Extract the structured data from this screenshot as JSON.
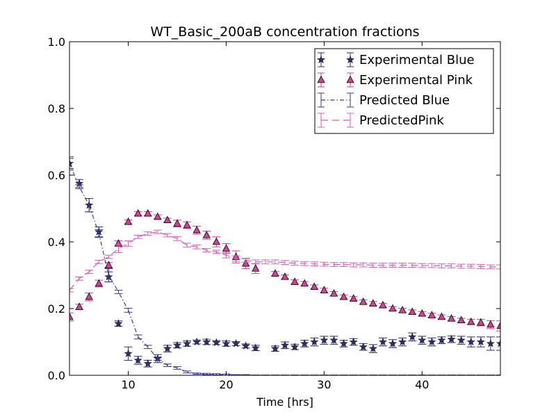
{
  "chart_data": {
    "type": "scatter",
    "title": "WT_Basic_200aB concentration fractions",
    "xlabel": "Time [hrs]",
    "ylabel": "",
    "xlim": [
      4,
      48
    ],
    "ylim": [
      0,
      1.0
    ],
    "xticks": [
      10,
      20,
      30,
      40
    ],
    "xtick_labels": [
      "10",
      "20",
      "30",
      "40"
    ],
    "yticks": [
      0,
      0.2,
      0.4,
      0.6,
      0.8,
      1.0
    ],
    "ytick_labels": [
      "0.0",
      "0.2",
      "0.4",
      "0.6",
      "0.8",
      "1.0"
    ],
    "grid": false,
    "legend_position": "top-right",
    "series": [
      {
        "name": "Experimental Blue",
        "style": "star-markers-with-errorbars",
        "color": "#2b2a6b",
        "x": [
          4,
          5,
          6,
          7,
          8,
          9,
          10,
          11,
          12,
          13,
          14,
          15,
          16,
          17,
          18,
          19,
          20,
          21,
          22,
          23,
          25,
          26,
          27,
          28,
          29,
          30,
          31,
          32,
          33,
          34,
          35,
          36,
          37,
          38,
          39,
          40,
          41,
          42,
          43,
          44,
          45,
          46,
          47,
          48
        ],
        "y": [
          0.635,
          0.575,
          0.51,
          0.43,
          0.295,
          0.155,
          0.065,
          0.045,
          0.035,
          0.05,
          0.08,
          0.09,
          0.095,
          0.1,
          0.1,
          0.098,
          0.095,
          0.095,
          0.088,
          0.082,
          0.08,
          0.09,
          0.085,
          0.095,
          0.1,
          0.105,
          0.105,
          0.095,
          0.1,
          0.085,
          0.08,
          0.1,
          0.095,
          0.1,
          0.115,
          0.105,
          0.1,
          0.105,
          0.108,
          0.105,
          0.1,
          0.1,
          0.095,
          0.095
        ],
        "err": [
          0.015,
          0.012,
          0.02,
          0.015,
          0.015,
          0.008,
          0.02,
          0.012,
          0.01,
          0.012,
          0.01,
          0.008,
          0.008,
          0.006,
          0.008,
          0.006,
          0.008,
          0.006,
          0.006,
          0.008,
          0.008,
          0.01,
          0.008,
          0.01,
          0.012,
          0.012,
          0.012,
          0.01,
          0.01,
          0.01,
          0.012,
          0.012,
          0.012,
          0.012,
          0.012,
          0.012,
          0.012,
          0.01,
          0.01,
          0.012,
          0.015,
          0.015,
          0.02,
          0.02
        ]
      },
      {
        "name": "Experimental Pink",
        "style": "triangle-markers-with-errorbars",
        "color": "#d63f94",
        "x": [
          4,
          5,
          6,
          7,
          8,
          9,
          10,
          11,
          12,
          13,
          14,
          15,
          16,
          17,
          18,
          19,
          20,
          21,
          22,
          23,
          25,
          26,
          27,
          28,
          29,
          30,
          31,
          32,
          33,
          34,
          35,
          36,
          37,
          38,
          39,
          40,
          41,
          42,
          43,
          44,
          45,
          46,
          47,
          48
        ],
        "y": [
          0.175,
          0.205,
          0.235,
          0.275,
          0.33,
          0.395,
          0.46,
          0.485,
          0.485,
          0.475,
          0.465,
          0.455,
          0.45,
          0.435,
          0.42,
          0.4,
          0.38,
          0.355,
          0.335,
          0.32,
          0.305,
          0.295,
          0.28,
          0.275,
          0.265,
          0.255,
          0.245,
          0.235,
          0.23,
          0.22,
          0.215,
          0.21,
          0.2,
          0.195,
          0.19,
          0.185,
          0.18,
          0.175,
          0.17,
          0.165,
          0.16,
          0.158,
          0.152,
          0.148
        ],
        "err": [
          0.012,
          0.008,
          0.012,
          0.01,
          0.008,
          0.008,
          0.006,
          0.006,
          0.006,
          0.006,
          0.006,
          0.01,
          0.01,
          0.012,
          0.012,
          0.015,
          0.015,
          0.018,
          0.015,
          0.015,
          0.006,
          0.006,
          0.006,
          0.006,
          0.006,
          0.006,
          0.006,
          0.006,
          0.006,
          0.006,
          0.006,
          0.006,
          0.006,
          0.006,
          0.006,
          0.006,
          0.006,
          0.006,
          0.006,
          0.006,
          0.008,
          0.01,
          0.012,
          0.015
        ]
      },
      {
        "name": "Predicted Blue",
        "style": "dash-dot-line-with-errorbars",
        "color": "#3a3a9a",
        "x": [
          4,
          5,
          6,
          7,
          8,
          9,
          10,
          11,
          12,
          13,
          14,
          15,
          16,
          17,
          18,
          19,
          20,
          21,
          22,
          23,
          24,
          25,
          26,
          27,
          28,
          29,
          30,
          31,
          32,
          33,
          34,
          35,
          36,
          37,
          38,
          39,
          40,
          41,
          42,
          43,
          44,
          45,
          46,
          47,
          48
        ],
        "y": [
          0.635,
          0.565,
          0.51,
          0.425,
          0.3,
          0.25,
          0.195,
          0.115,
          0.085,
          0.05,
          0.03,
          0.022,
          0.01,
          0.005,
          0.004,
          0.003,
          0.002,
          0.001,
          0.001,
          0.0,
          0.0,
          0.0,
          0.0,
          0.0,
          0.0,
          0.0,
          0.0,
          0.0,
          0.0,
          0.0,
          0.0,
          0.0,
          0.0,
          0.0,
          0.0,
          0.0,
          0.0,
          0.0,
          0.0,
          0.0,
          0.0,
          0.0,
          0.0,
          0.0,
          0.0
        ],
        "err": [
          0.02,
          0.006,
          0.02,
          0.012,
          0.02,
          0.005,
          0.006,
          0.006,
          0.005,
          0.005,
          0.004,
          0.004,
          0.003,
          0.002,
          0.002,
          0.002,
          0.002,
          0.001,
          0.001,
          0.001,
          0.001,
          0.001,
          0.001,
          0.001,
          0.001,
          0.001,
          0.001,
          0.001,
          0.001,
          0.001,
          0.001,
          0.001,
          0.001,
          0.001,
          0.001,
          0.001,
          0.001,
          0.001,
          0.001,
          0.001,
          0.001,
          0.001,
          0.001,
          0.001,
          0.001
        ]
      },
      {
        "name": "PredictedPink",
        "style": "dashed-line-with-errorbars",
        "color": "#d95bb5",
        "x": [
          4,
          5,
          6,
          7,
          8,
          9,
          10,
          11,
          12,
          13,
          14,
          15,
          16,
          17,
          18,
          19,
          20,
          21,
          22,
          23,
          24,
          25,
          26,
          27,
          28,
          29,
          30,
          31,
          32,
          33,
          34,
          35,
          36,
          37,
          38,
          39,
          40,
          41,
          42,
          43,
          44,
          45,
          46,
          47,
          48
        ],
        "y": [
          0.255,
          0.29,
          0.31,
          0.34,
          0.355,
          0.38,
          0.395,
          0.415,
          0.425,
          0.43,
          0.42,
          0.41,
          0.39,
          0.385,
          0.375,
          0.37,
          0.36,
          0.35,
          0.345,
          0.34,
          0.34,
          0.34,
          0.338,
          0.336,
          0.335,
          0.334,
          0.333,
          0.332,
          0.332,
          0.331,
          0.331,
          0.33,
          0.33,
          0.33,
          0.33,
          0.33,
          0.329,
          0.329,
          0.328,
          0.328,
          0.327,
          0.327,
          0.326,
          0.325,
          0.325
        ],
        "err": [
          0.005,
          0.005,
          0.005,
          0.005,
          0.005,
          0.012,
          0.008,
          0.005,
          0.005,
          0.005,
          0.005,
          0.006,
          0.006,
          0.006,
          0.005,
          0.005,
          0.008,
          0.008,
          0.006,
          0.006,
          0.006,
          0.006,
          0.006,
          0.006,
          0.006,
          0.006,
          0.006,
          0.006,
          0.006,
          0.006,
          0.006,
          0.006,
          0.006,
          0.006,
          0.006,
          0.006,
          0.006,
          0.006,
          0.006,
          0.006,
          0.006,
          0.006,
          0.006,
          0.006,
          0.006
        ]
      }
    ]
  }
}
